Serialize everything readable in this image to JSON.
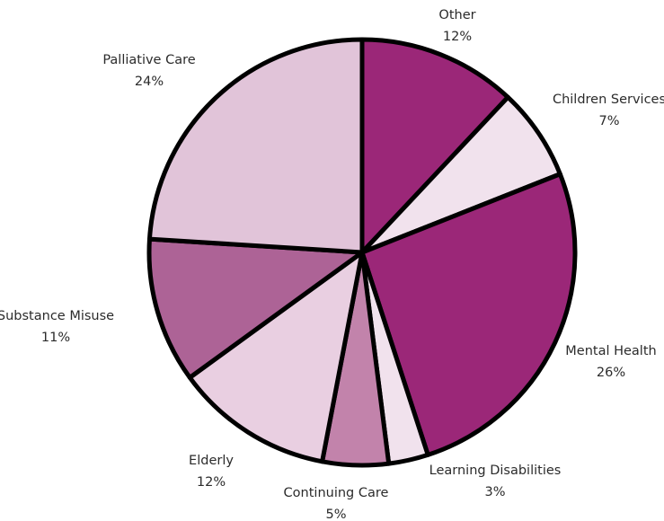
{
  "chart_data": {
    "type": "pie",
    "title": "",
    "start_angle_deg": 0,
    "direction": "clockwise",
    "slices": [
      {
        "label": "Other",
        "value": 12,
        "value_label": "12%",
        "color": "#9b2778"
      },
      {
        "label": "Children Services",
        "value": 7,
        "value_label": "7%",
        "color": "#f1e2ed"
      },
      {
        "label": "Mental Health",
        "value": 26,
        "value_label": "26%",
        "color": "#9b2778"
      },
      {
        "label": "Learning Disabilities",
        "value": 3,
        "value_label": "3%",
        "color": "#f1e2ed"
      },
      {
        "label": "Continuing Care",
        "value": 5,
        "value_label": "5%",
        "color": "#c283ab"
      },
      {
        "label": "Elderly",
        "value": 12,
        "value_label": "12%",
        "color": "#e9cfe1"
      },
      {
        "label": "Substance Misuse",
        "value": 11,
        "value_label": "11%",
        "color": "#ad6396"
      },
      {
        "label": "Palliative Care",
        "value": 24,
        "value_label": "24%",
        "color": "#e1c4d9"
      }
    ]
  }
}
